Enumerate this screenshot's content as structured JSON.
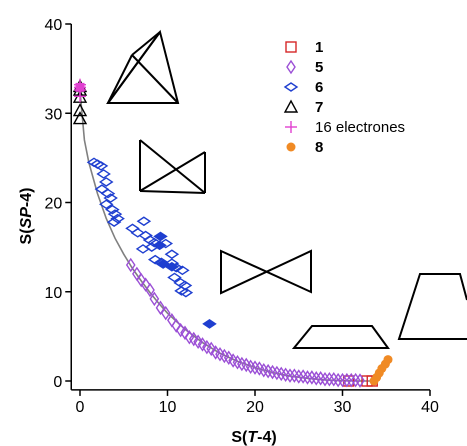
{
  "chart_data": {
    "type": "scatter",
    "title": "",
    "xlabel_parts": [
      "S(",
      "T",
      "-4)"
    ],
    "ylabel_parts": [
      "S(",
      "SP",
      "-4)"
    ],
    "xlim": [
      -1,
      40
    ],
    "ylim": [
      -1,
      40
    ],
    "x_ticks": [
      0,
      10,
      20,
      30,
      40
    ],
    "y_ticks": [
      0,
      10,
      20,
      30,
      40
    ],
    "colors": {
      "s1": "#d62728",
      "s5": "#9b4fd6",
      "s6": "#1f3fd0",
      "s6_filled": "#1f3fd0",
      "s7": "#000000",
      "s16": "#e040d0",
      "s8": "#f08a24",
      "curve": "#808080"
    },
    "legend": [
      {
        "key": "s1",
        "label": "1",
        "bold": true,
        "marker": "square-open"
      },
      {
        "key": "s5",
        "label": "5",
        "bold": true,
        "marker": "diamond-open"
      },
      {
        "key": "s6",
        "label": "6",
        "bold": true,
        "marker": "diamond-h-open"
      },
      {
        "key": "s7",
        "label": "7",
        "bold": true,
        "marker": "triangle-open"
      },
      {
        "key": "s16",
        "label": "16 electrones",
        "bold": false,
        "marker": "plus"
      },
      {
        "key": "s8",
        "label": "8",
        "bold": true,
        "marker": "circle-filled"
      }
    ],
    "curve": [
      [
        0,
        32.5
      ],
      [
        0.5,
        27
      ],
      [
        1,
        24.5
      ],
      [
        2,
        21
      ],
      [
        3,
        18.2
      ],
      [
        4,
        16
      ],
      [
        5,
        14.2
      ],
      [
        6,
        12.6
      ],
      [
        7,
        11.2
      ],
      [
        8,
        9.9
      ],
      [
        9,
        8.7
      ],
      [
        10,
        7.6
      ],
      [
        12,
        5.8
      ],
      [
        14,
        4.3
      ],
      [
        16,
        3.1
      ],
      [
        18,
        2.2
      ],
      [
        20,
        1.5
      ],
      [
        22,
        0.95
      ],
      [
        24,
        0.55
      ],
      [
        26,
        0.3
      ],
      [
        28,
        0.12
      ],
      [
        30,
        0.03
      ],
      [
        32,
        0.0
      ],
      [
        33.5,
        0.0
      ]
    ],
    "series": [
      {
        "key": "s1",
        "marker": "square-open",
        "points": [
          [
            30.7,
            0
          ],
          [
            32.8,
            0
          ],
          [
            33.4,
            0
          ]
        ]
      },
      {
        "key": "s5",
        "marker": "diamond-open",
        "points": [
          [
            5.8,
            13
          ],
          [
            6.5,
            12
          ],
          [
            7,
            11.3
          ],
          [
            7.5,
            10.8
          ],
          [
            8,
            10.2
          ],
          [
            8.5,
            9.2
          ],
          [
            9.2,
            8.2
          ],
          [
            9.8,
            7.6
          ],
          [
            10.5,
            6.8
          ],
          [
            11,
            6.2
          ],
          [
            11.5,
            5.7
          ],
          [
            12,
            5.4
          ],
          [
            12.5,
            4.9
          ],
          [
            13,
            4.7
          ],
          [
            13.5,
            4.4
          ],
          [
            14,
            4.1
          ],
          [
            14.5,
            3.8
          ],
          [
            15,
            3.6
          ],
          [
            15.5,
            3.2
          ],
          [
            16,
            3
          ],
          [
            16.5,
            2.8
          ],
          [
            17,
            2.6
          ],
          [
            17.5,
            2.3
          ],
          [
            18,
            2.1
          ],
          [
            18.5,
            1.9
          ],
          [
            19,
            1.8
          ],
          [
            19.5,
            1.6
          ],
          [
            20,
            1.5
          ],
          [
            20.5,
            1.4
          ],
          [
            21,
            1.2
          ],
          [
            21.5,
            1.1
          ],
          [
            22,
            1
          ],
          [
            22.5,
            0.9
          ],
          [
            23,
            0.8
          ],
          [
            23.5,
            0.7
          ],
          [
            24,
            0.6
          ],
          [
            24.5,
            0.6
          ],
          [
            25,
            0.5
          ],
          [
            25.5,
            0.5
          ],
          [
            26,
            0.4
          ],
          [
            26.5,
            0.4
          ],
          [
            27,
            0.3
          ],
          [
            27.5,
            0.3
          ],
          [
            28,
            0.2
          ],
          [
            28.5,
            0.2
          ],
          [
            29,
            0.2
          ],
          [
            29.5,
            0.1
          ],
          [
            30,
            0.1
          ],
          [
            30.5,
            0.1
          ],
          [
            31,
            0.1
          ],
          [
            31.5,
            0.1
          ],
          [
            32,
            0.05
          ]
        ]
      },
      {
        "key": "s6",
        "marker": "diamond-h-open",
        "points": [
          [
            1.6,
            24.5
          ],
          [
            2,
            24.3
          ],
          [
            2.4,
            24.1
          ],
          [
            2.7,
            23.2
          ],
          [
            3,
            22.3
          ],
          [
            2.5,
            21.5
          ],
          [
            3.2,
            21
          ],
          [
            3.5,
            20.5
          ],
          [
            3,
            19.8
          ],
          [
            3.7,
            19.2
          ],
          [
            4,
            18.7
          ],
          [
            4.3,
            18.2
          ],
          [
            3.9,
            17.8
          ],
          [
            7.3,
            17.9
          ],
          [
            6,
            17.1
          ],
          [
            6.6,
            16.6
          ],
          [
            7.5,
            16.3
          ],
          [
            8,
            15.8
          ],
          [
            8.5,
            15.5
          ],
          [
            8.2,
            15
          ],
          [
            9.8,
            15.4
          ],
          [
            7.2,
            14.8
          ],
          [
            10.5,
            14.2
          ],
          [
            8.6,
            13.6
          ],
          [
            9.3,
            13.3
          ],
          [
            10.5,
            13.2
          ],
          [
            11,
            12.7
          ],
          [
            11.7,
            12.4
          ],
          [
            10.8,
            11.6
          ],
          [
            11.5,
            11
          ],
          [
            12,
            10.7
          ],
          [
            11.6,
            10.1
          ],
          [
            12.1,
            9.9
          ]
        ]
      },
      {
        "key": "s6_filled",
        "marker": "diamond-h-filled",
        "points": [
          [
            9.2,
            16.2
          ],
          [
            9.1,
            15.2
          ],
          [
            9.5,
            13.1
          ],
          [
            10.5,
            12.8
          ],
          [
            14.8,
            6.4
          ]
        ]
      },
      {
        "key": "s7",
        "marker": "triangle-open",
        "points": [
          [
            0,
            33
          ],
          [
            0,
            32.6
          ],
          [
            0,
            31.8
          ],
          [
            0,
            30.3
          ],
          [
            0,
            29.4
          ]
        ]
      },
      {
        "key": "s16",
        "marker": "plus",
        "points": [
          [
            0,
            33.2
          ],
          [
            0,
            32.6
          ],
          [
            0,
            31.9
          ],
          [
            0,
            32.9
          ]
        ]
      },
      {
        "key": "s16f",
        "marker": "square-filled-pink",
        "points": [
          [
            0,
            32.9
          ]
        ]
      },
      {
        "key": "s8",
        "marker": "circle-filled",
        "points": [
          [
            33.6,
            0
          ],
          [
            33.9,
            0.4
          ],
          [
            34.2,
            0.9
          ],
          [
            34.5,
            1.4
          ],
          [
            34.9,
            1.9
          ],
          [
            35.2,
            2.4
          ]
        ]
      }
    ]
  }
}
